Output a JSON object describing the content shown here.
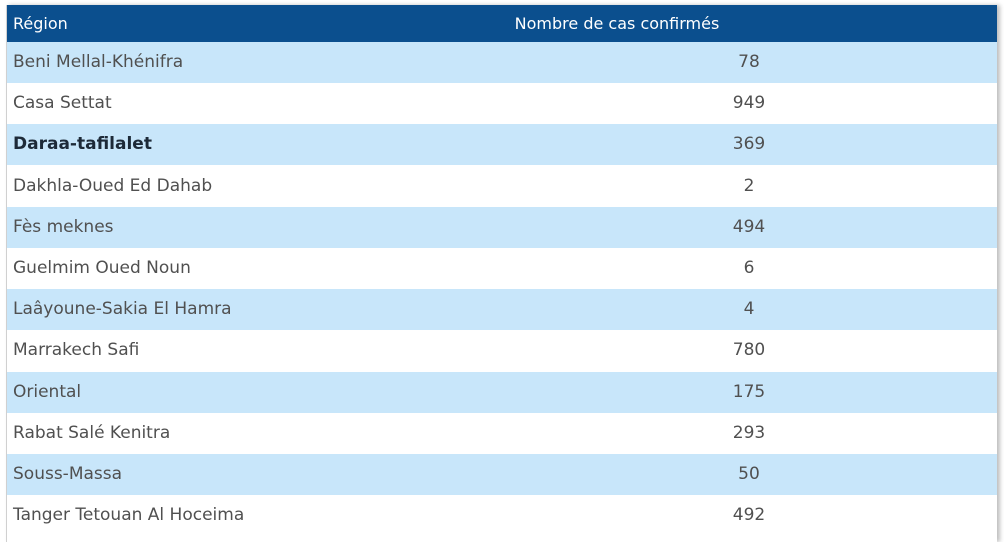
{
  "table": {
    "columns": [
      "Région",
      "Nombre de cas confirmés"
    ],
    "rows": [
      [
        "Beni Mellal-Khénifra",
        78
      ],
      [
        "Casa Settat",
        949
      ],
      [
        "Daraa-tafilalet",
        369
      ],
      [
        "Dakhla-Oued Ed Dahab",
        2
      ],
      [
        "Fès meknes",
        494
      ],
      [
        "Guelmim Oued Noun",
        6
      ],
      [
        "Laâyoune-Sakia El Hamra",
        4
      ],
      [
        "Marrakech Safi",
        780
      ],
      [
        "Oriental",
        175
      ],
      [
        "Rabat Salé Kenitra",
        293
      ],
      [
        "Souss-Massa",
        50
      ],
      [
        "Tanger Tetouan Al Hoceima",
        492
      ]
    ]
  }
}
